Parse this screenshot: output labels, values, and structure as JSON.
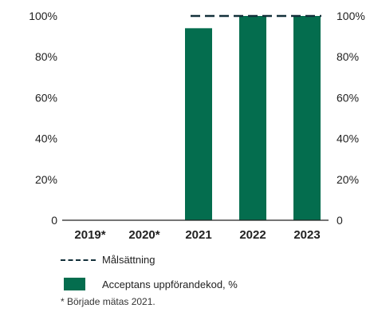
{
  "colors": {
    "bar": "#046d4e",
    "target": "#13303a",
    "axis": "#222222"
  },
  "chart_data": {
    "type": "bar",
    "categories": [
      "2019*",
      "2020*",
      "2021",
      "2022",
      "2023"
    ],
    "series": [
      {
        "name": "Acceptans uppförandekod, %",
        "values": [
          null,
          null,
          94,
          100,
          100
        ]
      },
      {
        "name": "Målsättning",
        "type": "line",
        "style": "dashed",
        "values": [
          null,
          null,
          100,
          100,
          100
        ]
      }
    ],
    "y_ticks_left": [
      "0",
      "20%",
      "40%",
      "60%",
      "80%",
      "100%"
    ],
    "y_ticks_right": [
      "0",
      "20%",
      "40%",
      "60%",
      "80%",
      "100%"
    ],
    "ylim": [
      0,
      100
    ],
    "grid": false,
    "legend_position": "bottom"
  },
  "legend": {
    "target_label": "Målsättning",
    "bar_label": "Acceptans uppförandekod, %"
  },
  "footnote": "* Började mätas 2021."
}
